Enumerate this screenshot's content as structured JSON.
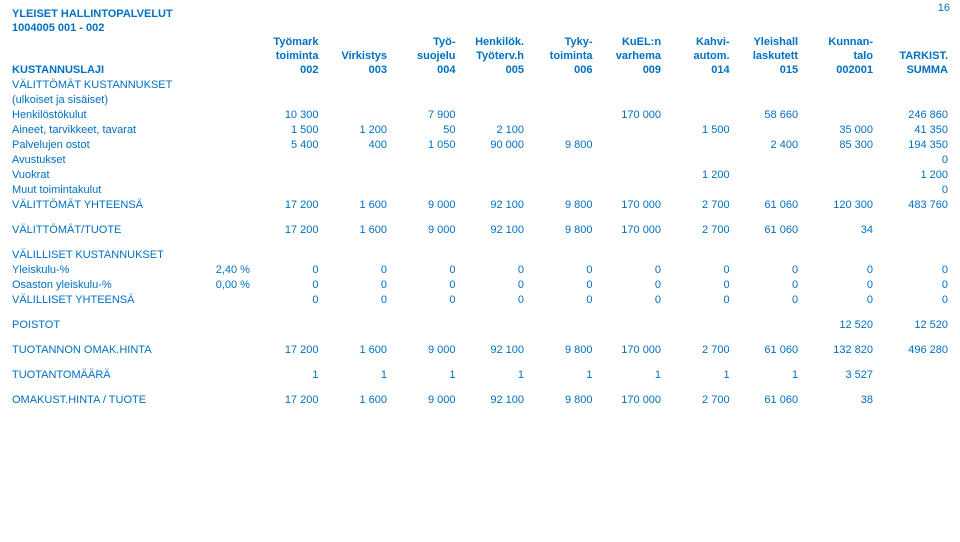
{
  "page_number": "16",
  "title1": "YLEISET HALLINTOPALVELUT",
  "title2": "1004005 001 - 002",
  "header": {
    "r1": [
      "",
      "Työmark",
      "",
      "Työ-",
      "Henkilök.",
      "Tyky-",
      "KuEL:n",
      "Kahvi-",
      "Yleishall",
      "Kunnan-",
      ""
    ],
    "r2": [
      "",
      "toiminta",
      "Virkistys",
      "suojelu",
      "Työterv.h",
      "toiminta",
      "varhema",
      "autom.",
      "laskutett",
      "talo",
      "TARKIST."
    ],
    "r3": [
      "KUSTANNUSLAJI",
      "002",
      "003",
      "004",
      "005",
      "006",
      "009",
      "014",
      "015",
      "002001",
      "SUMMA"
    ]
  },
  "section1_title": "VÄLITTÖMÄT KUSTANNUKSET",
  "section1_sub": "(ulkoiset ja sisäiset)",
  "rows1": [
    {
      "label": "Henkilöstökulut",
      "v": [
        "10 300",
        "",
        "7 900",
        "",
        "",
        "170 000",
        "",
        "58 660",
        "",
        "246 860"
      ]
    },
    {
      "label": "Aineet, tarvikkeet, tavarat",
      "v": [
        "1 500",
        "1 200",
        "50",
        "2 100",
        "",
        "",
        "1 500",
        "",
        "35 000",
        "41 350"
      ]
    },
    {
      "label": "Palvelujen ostot",
      "v": [
        "5 400",
        "400",
        "1 050",
        "90 000",
        "9 800",
        "",
        "",
        "2 400",
        "85 300",
        "194 350"
      ]
    },
    {
      "label": "Avustukset",
      "v": [
        "",
        "",
        "",
        "",
        "",
        "",
        "",
        "",
        "",
        "0"
      ]
    },
    {
      "label": "Vuokrat",
      "v": [
        "",
        "",
        "",
        "",
        "",
        "",
        "1 200",
        "",
        "",
        "1 200"
      ]
    },
    {
      "label": "Muut toimintakulut",
      "v": [
        "",
        "",
        "",
        "",
        "",
        "",
        "",
        "",
        "",
        "0"
      ]
    }
  ],
  "tot1": {
    "label": "VÄLITTÖMÄT YHTEENSÄ",
    "v": [
      "17 200",
      "1 600",
      "9 000",
      "92 100",
      "9 800",
      "170 000",
      "2 700",
      "61 060",
      "120 300",
      "483 760"
    ]
  },
  "tuote": {
    "label": "VÄLITTÖMÄT/TUOTE",
    "v": [
      "17 200",
      "1 600",
      "9 000",
      "92 100",
      "9 800",
      "170 000",
      "2 700",
      "61 060",
      "34",
      ""
    ]
  },
  "section2_title": "VÄLILLISET KUSTANNUKSET",
  "rows2": [
    {
      "label": "Yleiskulu-%",
      "pct": "2,40 %",
      "v": [
        "0",
        "0",
        "0",
        "0",
        "0",
        "0",
        "0",
        "0",
        "0",
        "0"
      ]
    },
    {
      "label": "Osaston yleiskulu-%",
      "pct": "0,00 %",
      "v": [
        "0",
        "0",
        "0",
        "0",
        "0",
        "0",
        "0",
        "0",
        "0",
        "0"
      ]
    }
  ],
  "tot2": {
    "label": "VÄLILLISET YHTEENSÄ",
    "v": [
      "0",
      "0",
      "0",
      "0",
      "0",
      "0",
      "0",
      "0",
      "0",
      "0"
    ]
  },
  "poistot": {
    "label": "POISTOT",
    "v": [
      "",
      "",
      "",
      "",
      "",
      "",
      "",
      "",
      "12 520",
      "12 520"
    ]
  },
  "omak": {
    "label": "TUOTANNON OMAK.HINTA",
    "v": [
      "17 200",
      "1 600",
      "9 000",
      "92 100",
      "9 800",
      "170 000",
      "2 700",
      "61 060",
      "132 820",
      "496 280"
    ]
  },
  "maara": {
    "label": "TUOTANTOMÄÄRÄ",
    "v": [
      "1",
      "1",
      "1",
      "1",
      "1",
      "1",
      "1",
      "1",
      "3 527",
      ""
    ]
  },
  "okt": {
    "label": "OMAKUST.HINTA / TUOTE",
    "v": [
      "17 200",
      "1 600",
      "9 000",
      "92 100",
      "9 800",
      "170 000",
      "2 700",
      "61 060",
      "38",
      ""
    ]
  },
  "colors": {
    "text": "#0070c0",
    "bg": "#ffffff"
  }
}
